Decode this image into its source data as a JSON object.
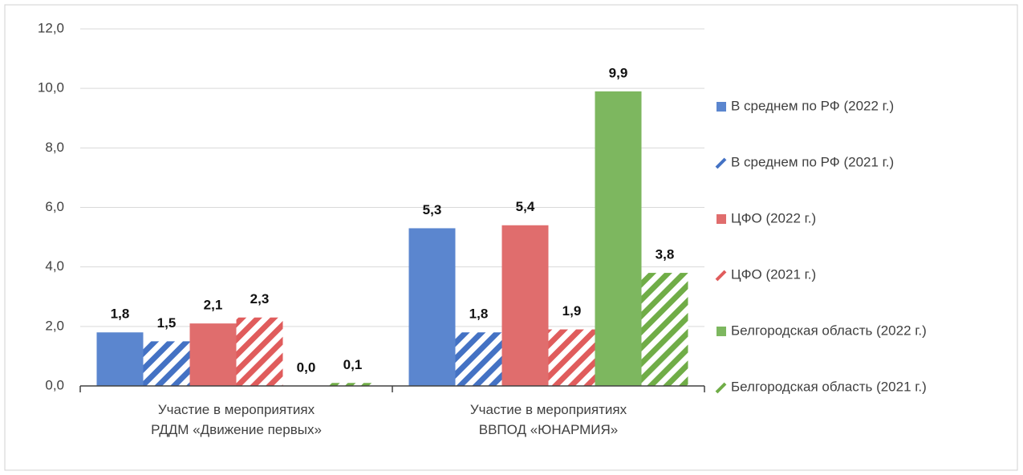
{
  "chart_data": {
    "type": "bar",
    "categories": [
      "Участие в мероприятиях\nРДДМ «Движение первых»",
      "Участие в мероприятиях\nВВПОД «ЮНАРМИЯ»"
    ],
    "series": [
      {
        "name": "В среднем по РФ (2022 г.)",
        "color": "#5b86cf",
        "hatched": false,
        "values": [
          1.8,
          5.3
        ],
        "value_labels": [
          "1,8",
          "5,3"
        ]
      },
      {
        "name": "В среднем по РФ (2021 г.)",
        "color": "#4472c4",
        "hatched": true,
        "values": [
          1.5,
          1.8
        ],
        "value_labels": [
          "1,5",
          "1,8"
        ]
      },
      {
        "name": "ЦФО (2022 г.)",
        "color": "#e06d6d",
        "hatched": false,
        "values": [
          2.1,
          5.4
        ],
        "value_labels": [
          "2,1",
          "5,4"
        ]
      },
      {
        "name": "ЦФО (2021 г.)",
        "color": "#e05c5c",
        "hatched": true,
        "values": [
          2.3,
          1.9
        ],
        "value_labels": [
          "2,3",
          "1,9"
        ]
      },
      {
        "name": "Белгородская область (2022 г.)",
        "color": "#7db75f",
        "hatched": false,
        "values": [
          0.0,
          9.9
        ],
        "value_labels": [
          "0,0",
          "9,9"
        ]
      },
      {
        "name": "Белгородская область (2021 г.)",
        "color": "#70ad47",
        "hatched": true,
        "values": [
          0.1,
          3.8
        ],
        "value_labels": [
          "0,1",
          "3,8"
        ]
      }
    ],
    "ylim": [
      0,
      12
    ],
    "yticks": [
      {
        "value": 0,
        "label": "0,0"
      },
      {
        "value": 2,
        "label": "2,0"
      },
      {
        "value": 4,
        "label": "4,0"
      },
      {
        "value": 6,
        "label": "6,0"
      },
      {
        "value": 8,
        "label": "8,0"
      },
      {
        "value": 10,
        "label": "10,0"
      },
      {
        "value": 12,
        "label": "12,0"
      }
    ],
    "grid": true,
    "legend": "right"
  }
}
